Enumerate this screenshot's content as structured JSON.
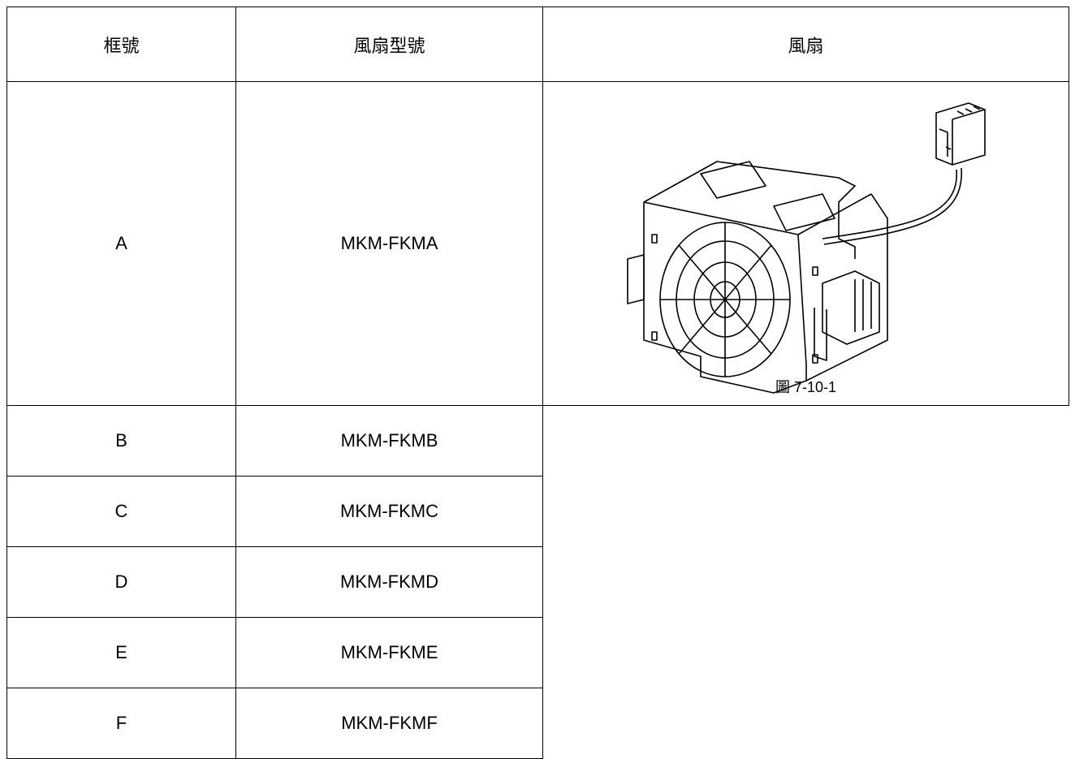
{
  "table": {
    "headers": [
      "框號",
      "風扇型號",
      "風扇"
    ],
    "rows": [
      [
        "A",
        "MKM-FKMA"
      ],
      [
        "B",
        "MKM-FKMB"
      ],
      [
        "C",
        "MKM-FKMC"
      ],
      [
        "D",
        "MKM-FKMD"
      ],
      [
        "E",
        "MKM-FKME"
      ],
      [
        "F",
        "MKM-FKMF"
      ]
    ]
  },
  "figure": {
    "caption": "圖 7-10-1"
  }
}
